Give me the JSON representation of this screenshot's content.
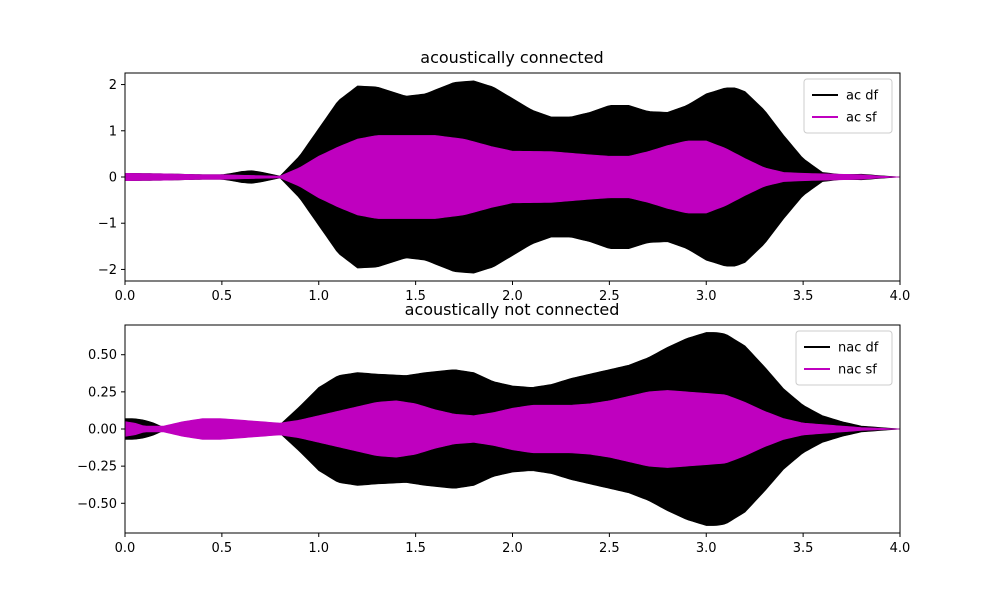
{
  "chart_data": [
    {
      "type": "area",
      "title": "acoustically connected",
      "xlabel": "",
      "ylabel": "",
      "xlim": [
        0.0,
        4.0
      ],
      "ylim": [
        -2.25,
        2.25
      ],
      "xticks": [
        "0.0",
        "0.5",
        "1.0",
        "1.5",
        "2.0",
        "2.5",
        "3.0",
        "3.5",
        "4.0"
      ],
      "yticks": [
        {
          "value": 2,
          "label": "2"
        },
        {
          "value": 1,
          "label": "1"
        },
        {
          "value": 0,
          "label": "0"
        },
        {
          "value": -1,
          "label": "−1"
        },
        {
          "value": -2,
          "label": "−2"
        }
      ],
      "legend_position": "upper right",
      "grid": false,
      "series": [
        {
          "name": "ac df",
          "color": "#000000",
          "style": "filled symmetric envelope (oscillating signal)",
          "x": [
            0.0,
            0.2,
            0.4,
            0.5,
            0.55,
            0.6,
            0.65,
            0.7,
            0.8,
            0.9,
            1.0,
            1.1,
            1.2,
            1.3,
            1.45,
            1.55,
            1.7,
            1.8,
            1.9,
            2.0,
            2.1,
            2.2,
            2.3,
            2.4,
            2.5,
            2.6,
            2.7,
            2.8,
            2.9,
            3.0,
            3.1,
            3.15,
            3.2,
            3.3,
            3.4,
            3.5,
            3.6,
            3.7,
            3.8,
            3.9,
            4.0
          ],
          "amplitude": [
            0.08,
            0.07,
            0.05,
            0.05,
            0.08,
            0.12,
            0.14,
            0.11,
            0.02,
            0.45,
            1.05,
            1.65,
            1.97,
            1.95,
            1.75,
            1.8,
            2.05,
            2.08,
            1.95,
            1.7,
            1.45,
            1.3,
            1.3,
            1.4,
            1.55,
            1.55,
            1.42,
            1.4,
            1.55,
            1.8,
            1.93,
            1.93,
            1.85,
            1.45,
            0.9,
            0.4,
            0.1,
            0.05,
            0.06,
            0.03,
            0.0
          ]
        },
        {
          "name": "ac sf",
          "color": "#bf00bf",
          "style": "filled symmetric envelope (oscillating signal)",
          "x": [
            0.0,
            0.2,
            0.4,
            0.5,
            0.6,
            0.7,
            0.8,
            0.9,
            1.0,
            1.1,
            1.2,
            1.3,
            1.45,
            1.6,
            1.75,
            1.9,
            2.0,
            2.2,
            2.4,
            2.5,
            2.6,
            2.7,
            2.8,
            2.9,
            3.0,
            3.1,
            3.2,
            3.3,
            3.4,
            3.5,
            3.6,
            3.7,
            3.8,
            3.9,
            4.0
          ],
          "amplitude": [
            0.08,
            0.07,
            0.05,
            0.05,
            0.04,
            0.03,
            0.02,
            0.2,
            0.45,
            0.65,
            0.82,
            0.9,
            0.9,
            0.9,
            0.82,
            0.65,
            0.56,
            0.55,
            0.48,
            0.45,
            0.45,
            0.55,
            0.68,
            0.78,
            0.78,
            0.62,
            0.4,
            0.2,
            0.1,
            0.08,
            0.07,
            0.06,
            0.05,
            0.02,
            0.0
          ]
        }
      ]
    },
    {
      "type": "area",
      "title": "acoustically not connected",
      "xlabel": "",
      "ylabel": "",
      "xlim": [
        0.0,
        4.0
      ],
      "ylim": [
        -0.7,
        0.7
      ],
      "xticks": [
        "0.0",
        "0.5",
        "1.0",
        "1.5",
        "2.0",
        "2.5",
        "3.0",
        "3.5",
        "4.0"
      ],
      "yticks": [
        {
          "value": 0.5,
          "label": "0.50"
        },
        {
          "value": 0.25,
          "label": "0.25"
        },
        {
          "value": 0.0,
          "label": "0.00"
        },
        {
          "value": -0.25,
          "label": "−0.25"
        },
        {
          "value": -0.5,
          "label": "−0.50"
        }
      ],
      "legend_position": "upper right",
      "grid": false,
      "series": [
        {
          "name": "nac df",
          "color": "#000000",
          "style": "filled symmetric envelope (oscillating signal)",
          "x": [
            0.0,
            0.05,
            0.1,
            0.15,
            0.2,
            0.3,
            0.4,
            0.5,
            0.6,
            0.7,
            0.8,
            0.9,
            1.0,
            1.1,
            1.2,
            1.3,
            1.45,
            1.55,
            1.7,
            1.8,
            1.9,
            2.0,
            2.1,
            2.2,
            2.3,
            2.4,
            2.5,
            2.6,
            2.7,
            2.8,
            2.9,
            3.0,
            3.05,
            3.1,
            3.2,
            3.3,
            3.4,
            3.5,
            3.6,
            3.7,
            3.8,
            3.9,
            4.0
          ],
          "amplitude": [
            0.07,
            0.07,
            0.06,
            0.04,
            0.01,
            0.03,
            0.05,
            0.05,
            0.04,
            0.04,
            0.03,
            0.15,
            0.28,
            0.36,
            0.38,
            0.37,
            0.36,
            0.38,
            0.4,
            0.38,
            0.32,
            0.29,
            0.28,
            0.3,
            0.34,
            0.37,
            0.4,
            0.43,
            0.48,
            0.55,
            0.61,
            0.65,
            0.65,
            0.64,
            0.56,
            0.42,
            0.27,
            0.16,
            0.09,
            0.05,
            0.02,
            0.01,
            0.0
          ]
        },
        {
          "name": "nac sf",
          "color": "#bf00bf",
          "style": "filled symmetric envelope (oscillating signal)",
          "x": [
            0.0,
            0.05,
            0.1,
            0.2,
            0.3,
            0.4,
            0.45,
            0.5,
            0.6,
            0.7,
            0.8,
            0.9,
            1.0,
            1.1,
            1.2,
            1.3,
            1.4,
            1.5,
            1.6,
            1.7,
            1.8,
            1.9,
            2.0,
            2.1,
            2.2,
            2.3,
            2.4,
            2.5,
            2.6,
            2.7,
            2.8,
            2.9,
            3.0,
            3.1,
            3.2,
            3.3,
            3.4,
            3.5,
            3.6,
            3.7,
            3.8,
            3.9,
            4.0
          ],
          "amplitude": [
            0.05,
            0.04,
            0.02,
            0.02,
            0.05,
            0.07,
            0.07,
            0.07,
            0.06,
            0.05,
            0.04,
            0.06,
            0.09,
            0.12,
            0.15,
            0.18,
            0.19,
            0.17,
            0.13,
            0.1,
            0.09,
            0.11,
            0.14,
            0.16,
            0.16,
            0.16,
            0.17,
            0.19,
            0.22,
            0.25,
            0.26,
            0.25,
            0.24,
            0.23,
            0.18,
            0.12,
            0.07,
            0.04,
            0.03,
            0.02,
            0.01,
            0.005,
            0.0
          ]
        }
      ]
    }
  ]
}
